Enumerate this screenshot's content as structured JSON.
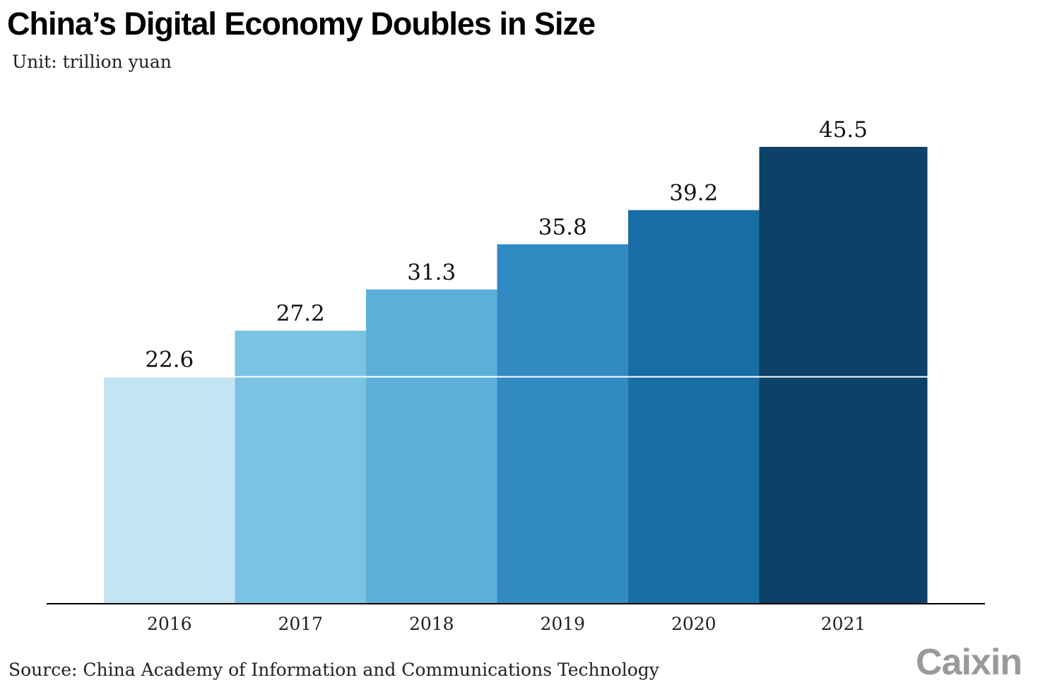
{
  "chart_data": {
    "type": "bar",
    "title": "China’s Digital Economy Doubles in Size",
    "subtitle": "Unit: trillion yuan",
    "categories": [
      "2016",
      "2017",
      "2018",
      "2019",
      "2020",
      "2021"
    ],
    "values": [
      22.6,
      27.2,
      31.3,
      35.8,
      39.2,
      45.5
    ],
    "value_labels": [
      "22.6",
      "27.2",
      "31.3",
      "35.8",
      "39.2",
      "45.5"
    ],
    "colors": [
      "#c3e5f3",
      "#7bc3e3",
      "#5cb0d8",
      "#328ac2",
      "#186da5",
      "#0c4168"
    ],
    "reference_line_value": 22.6,
    "ylim": [
      0,
      45.5
    ],
    "xlabel": "",
    "ylabel": "",
    "grid": false,
    "legend": "none",
    "source": "Source: China Academy of Information and Communications Technology"
  },
  "branding": {
    "logo_text": "Caixin"
  }
}
